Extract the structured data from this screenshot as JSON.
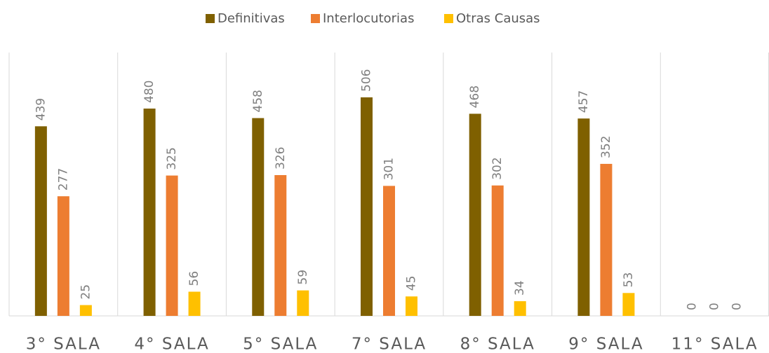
{
  "chart_data": {
    "type": "bar",
    "categories": [
      "3° SALA",
      "4° SALA",
      "5° SALA",
      "7° SALA",
      "8° SALA",
      "9° SALA",
      "11° SALA"
    ],
    "series": [
      {
        "name": "Definitivas",
        "color": "#7f6000",
        "values": [
          439,
          480,
          458,
          506,
          468,
          457,
          0
        ]
      },
      {
        "name": "Interlocutorias",
        "color": "#ed7d31",
        "values": [
          277,
          325,
          326,
          301,
          302,
          352,
          0
        ]
      },
      {
        "name": "Otras Causas",
        "color": "#ffc000",
        "values": [
          25,
          56,
          59,
          45,
          34,
          53,
          0
        ]
      }
    ],
    "legend": "top"
  }
}
